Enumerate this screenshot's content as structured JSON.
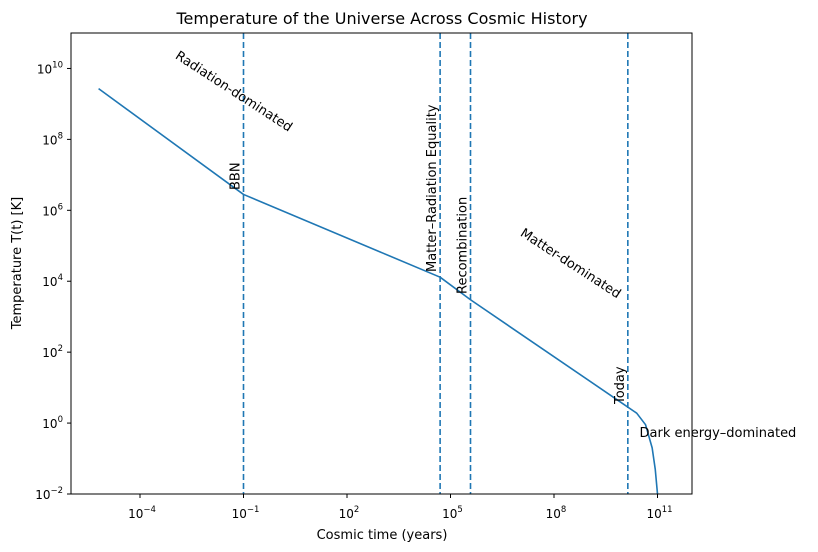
{
  "chart_data": {
    "type": "line",
    "title": "Temperature of the Universe Across Cosmic History",
    "xlabel": "Cosmic time (years)",
    "ylabel": "Temperature T(t) [K]",
    "xscale": "log",
    "yscale": "log",
    "xlim": [
      1e-06,
      1000000000000.0
    ],
    "ylim": [
      0.01,
      100000000000.0
    ],
    "x_ticks": [
      {
        "base": "10",
        "exp": "−4",
        "value": 0.0001
      },
      {
        "base": "10",
        "exp": "−1",
        "value": 0.1
      },
      {
        "base": "10",
        "exp": "2",
        "value": 100
      },
      {
        "base": "10",
        "exp": "5",
        "value": 100000.0
      },
      {
        "base": "10",
        "exp": "8",
        "value": 100000000.0
      },
      {
        "base": "10",
        "exp": "11",
        "value": 100000000000.0
      }
    ],
    "y_ticks": [
      {
        "base": "10",
        "exp": "−2",
        "value": 0.01
      },
      {
        "base": "10",
        "exp": "0",
        "value": 1
      },
      {
        "base": "10",
        "exp": "2",
        "value": 100
      },
      {
        "base": "10",
        "exp": "4",
        "value": 10000.0
      },
      {
        "base": "10",
        "exp": "6",
        "value": 1000000.0
      },
      {
        "base": "10",
        "exp": "8",
        "value": 100000000.0
      },
      {
        "base": "10",
        "exp": "10",
        "value": 10000000000.0
      }
    ],
    "series": [
      {
        "color": "#1f77b4",
        "points": [
          [
            6.3e-06,
            2700000000.0
          ],
          [
            0.1,
            2800000.0
          ],
          [
            50000.0,
            13000.0
          ],
          [
            380000.0,
            3000.0
          ],
          [
            10000000000.0,
            3.5
          ],
          [
            25000000000.0,
            1.9
          ],
          [
            45000000000.0,
            0.9
          ],
          [
            70000000000.0,
            0.2
          ],
          [
            86000000000.0,
            0.05
          ],
          [
            100000000000.0,
            0.01
          ]
        ]
      }
    ],
    "vlines": [
      {
        "x": 0.1,
        "label": "BBN",
        "color": "#1f77b4",
        "style": "dashed"
      },
      {
        "x": 50000.0,
        "label": "Matter–Radiation Equality",
        "color": "#1f77b4",
        "style": "dashed"
      },
      {
        "x": 380000.0,
        "label": "Recombination",
        "color": "#1f77b4",
        "style": "dashed"
      },
      {
        "x": 13800000000.0,
        "label": "Today",
        "color": "#1f77b4",
        "style": "dashed"
      }
    ],
    "annotations": [
      {
        "text": "Radiation-dominated",
        "x": 0.001,
        "y": 20000000000.0,
        "rotation": 33
      },
      {
        "text": "Matter-dominated",
        "x": 10000000.0,
        "y": 200000.0,
        "rotation": 33
      },
      {
        "text": "Dark energy–dominated",
        "x": 30000000000.0,
        "y": 0.4,
        "rotation": 0
      }
    ]
  }
}
